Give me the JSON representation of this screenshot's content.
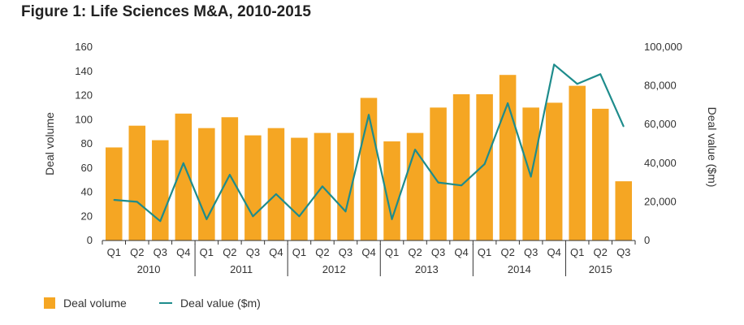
{
  "title": "Figure 1: Life Sciences M&A, 2010-2015",
  "colors": {
    "bar": "#F5A623",
    "line": "#1E8C8C"
  },
  "chart_data": {
    "type": "bar",
    "title": "Figure 1: Life Sciences M&A, 2010-2015",
    "categories": [
      "Q1",
      "Q2",
      "Q3",
      "Q4",
      "Q1",
      "Q2",
      "Q3",
      "Q4",
      "Q1",
      "Q2",
      "Q3",
      "Q4",
      "Q1",
      "Q2",
      "Q3",
      "Q4",
      "Q1",
      "Q2",
      "Q3",
      "Q4",
      "Q1",
      "Q2",
      "Q3"
    ],
    "year_groups": [
      {
        "label": "2010",
        "quarters": 4
      },
      {
        "label": "2011",
        "quarters": 4
      },
      {
        "label": "2012",
        "quarters": 4
      },
      {
        "label": "2013",
        "quarters": 4
      },
      {
        "label": "2014",
        "quarters": 4
      },
      {
        "label": "2015",
        "quarters": 3
      }
    ],
    "series": [
      {
        "name": "Deal volume",
        "type": "bar",
        "axis": "left",
        "values": [
          77,
          95,
          83,
          105,
          93,
          102,
          87,
          93,
          85,
          89,
          89,
          118,
          82,
          89,
          110,
          121,
          121,
          137,
          110,
          114,
          128,
          109,
          49
        ]
      },
      {
        "name": "Deal value ($m)",
        "type": "line",
        "axis": "right",
        "values": [
          21000,
          20000,
          10000,
          40000,
          11000,
          34000,
          12500,
          24000,
          12500,
          28000,
          15000,
          65000,
          11000,
          47000,
          30000,
          28500,
          39500,
          71000,
          33000,
          91000,
          81000,
          86000,
          59000
        ]
      }
    ],
    "ylabel": "Deal volume",
    "y2label": "Deal value ($m)",
    "ylim": [
      0,
      160
    ],
    "yticks": [
      0,
      20,
      40,
      60,
      80,
      100,
      120,
      140,
      160
    ],
    "y2lim": [
      0,
      100000
    ],
    "y2ticks": [
      "0",
      "20,000",
      "40,000",
      "60,000",
      "80,000",
      "100,000"
    ],
    "grid": false,
    "legend_position": "bottom-left"
  }
}
